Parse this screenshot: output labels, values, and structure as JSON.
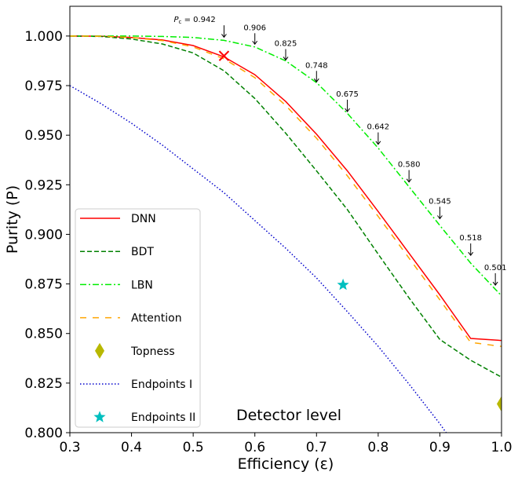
{
  "chart_data": {
    "type": "line",
    "xlabel": "Efficiency (ε)",
    "ylabel": "Purity (P)",
    "xlim": [
      0.3,
      1.0
    ],
    "ylim": [
      0.8,
      1.015
    ],
    "xticks": [
      "0.3",
      "0.4",
      "0.5",
      "0.6",
      "0.7",
      "0.8",
      "0.9",
      "1.0"
    ],
    "yticks": [
      "0.800",
      "0.825",
      "0.850",
      "0.875",
      "0.900",
      "0.925",
      "0.950",
      "0.975",
      "1.000"
    ],
    "grid": false,
    "legend_position": "lower-left",
    "text_annotation": "Detector level",
    "series": [
      {
        "name": "DNN",
        "color": "#ff0000",
        "style": "solid",
        "x": [
          0.3,
          0.35,
          0.4,
          0.45,
          0.5,
          0.55,
          0.6,
          0.65,
          0.7,
          0.75,
          0.8,
          0.85,
          0.9,
          0.95,
          1.0
        ],
        "y": [
          1.0,
          0.9999,
          0.9993,
          0.998,
          0.9952,
          0.9895,
          0.9805,
          0.967,
          0.9505,
          0.932,
          0.9115,
          0.8905,
          0.8695,
          0.8475,
          0.8465
        ]
      },
      {
        "name": "BDT",
        "color": "#008000",
        "style": "dashed",
        "x": [
          0.3,
          0.35,
          0.4,
          0.45,
          0.5,
          0.55,
          0.6,
          0.65,
          0.7,
          0.75,
          0.8,
          0.85,
          0.9,
          0.95,
          1.0
        ],
        "y": [
          1.0,
          0.9998,
          0.9985,
          0.996,
          0.9915,
          0.9825,
          0.9685,
          0.951,
          0.932,
          0.9125,
          0.89,
          0.868,
          0.847,
          0.8365,
          0.828
        ]
      },
      {
        "name": "LBN",
        "color": "#00ee00",
        "style": "dashdot",
        "x": [
          0.3,
          0.35,
          0.4,
          0.45,
          0.5,
          0.55,
          0.6,
          0.65,
          0.7,
          0.75,
          0.8,
          0.85,
          0.9,
          0.95,
          1.0
        ],
        "y": [
          1.0,
          1.0,
          1.0,
          0.9998,
          0.9993,
          0.9978,
          0.9945,
          0.9875,
          0.9765,
          0.961,
          0.9435,
          0.924,
          0.9045,
          0.8855,
          0.869
        ]
      },
      {
        "name": "Attention",
        "color": "#ffa500",
        "style": "longdash",
        "x": [
          0.3,
          0.35,
          0.4,
          0.45,
          0.5,
          0.55,
          0.6,
          0.65,
          0.7,
          0.75,
          0.8,
          0.85,
          0.9,
          0.95,
          1.0
        ],
        "y": [
          1.0,
          0.9999,
          0.9992,
          0.9977,
          0.9945,
          0.9885,
          0.979,
          0.965,
          0.9485,
          0.9295,
          0.909,
          0.888,
          0.867,
          0.8455,
          0.8435
        ]
      },
      {
        "name": "Topness",
        "color": "#b8b800",
        "marker": "diamond",
        "x": [
          1.0
        ],
        "y": [
          0.8145
        ]
      },
      {
        "name": "Endpoints I",
        "color": "#0000cc",
        "style": "dotted",
        "x": [
          0.3,
          0.35,
          0.4,
          0.45,
          0.5,
          0.55,
          0.6,
          0.65,
          0.7,
          0.75,
          0.8,
          0.85,
          0.9,
          0.95
        ],
        "y": [
          0.975,
          0.966,
          0.956,
          0.945,
          0.933,
          0.921,
          0.907,
          0.893,
          0.878,
          0.861,
          0.8435,
          0.8245,
          0.8045,
          0.7825
        ]
      },
      {
        "name": "Endpoints II",
        "color": "#00bfbf",
        "marker": "star",
        "x": [
          0.743
        ],
        "y": [
          0.8745
        ]
      }
    ],
    "cut_marker": {
      "x": 0.55,
      "y": 0.99,
      "color": "#ff0000",
      "marker": "x"
    },
    "annotations": [
      {
        "label": "0.942",
        "prefix": "P",
        "sub": "c",
        "x": 0.55,
        "y": 0.999,
        "tx": 0.5,
        "ty": 1.007
      },
      {
        "label": "0.906",
        "x": 0.6,
        "y": 0.9955,
        "tx": 0.6,
        "ty": 1.003
      },
      {
        "label": "0.825",
        "x": 0.65,
        "y": 0.9875,
        "tx": 0.65,
        "ty": 0.995
      },
      {
        "label": "0.748",
        "x": 0.7,
        "y": 0.9765,
        "tx": 0.7,
        "ty": 0.984
      },
      {
        "label": "0.675",
        "x": 0.75,
        "y": 0.9615,
        "tx": 0.75,
        "ty": 0.9695
      },
      {
        "label": "0.642",
        "x": 0.8,
        "y": 0.945,
        "tx": 0.8,
        "ty": 0.953
      },
      {
        "label": "0.580",
        "x": 0.85,
        "y": 0.926,
        "tx": 0.85,
        "ty": 0.934
      },
      {
        "label": "0.545",
        "x": 0.9,
        "y": 0.9075,
        "tx": 0.9,
        "ty": 0.9155
      },
      {
        "label": "0.518",
        "x": 0.95,
        "y": 0.889,
        "tx": 0.95,
        "ty": 0.897
      },
      {
        "label": "0.501",
        "x": 0.99,
        "y": 0.874,
        "tx": 0.99,
        "ty": 0.882
      }
    ]
  }
}
